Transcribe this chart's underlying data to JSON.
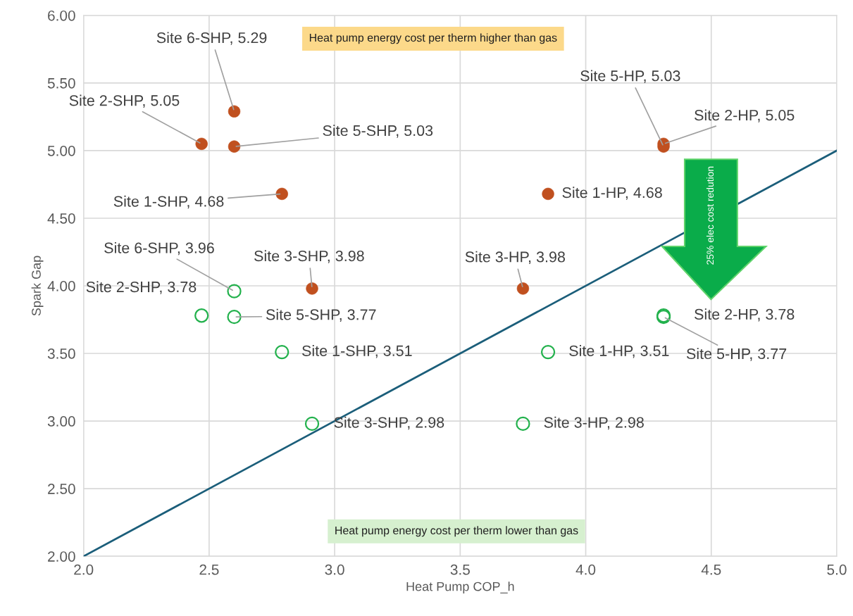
{
  "chart_data": {
    "type": "scatter",
    "xlabel": "Heat Pump COP_h",
    "ylabel": "Spark Gap",
    "xlim": [
      2.0,
      5.0
    ],
    "xticks": [
      {
        "value": 2.0,
        "label": "2.0"
      },
      {
        "value": 2.5,
        "label": "2.5"
      },
      {
        "value": 3.0,
        "label": "3.0"
      },
      {
        "value": 3.5,
        "label": "3.5"
      },
      {
        "value": 4.0,
        "label": "4.0"
      },
      {
        "value": 4.5,
        "label": "4.5"
      },
      {
        "value": 5.0,
        "label": "5.0"
      }
    ],
    "ylim": [
      2.0,
      6.0
    ],
    "yticks": [
      {
        "value": 2.0,
        "label": "2.00"
      },
      {
        "value": 2.5,
        "label": "2.50"
      },
      {
        "value": 3.0,
        "label": "3.00"
      },
      {
        "value": 3.5,
        "label": "3.50"
      },
      {
        "value": 4.0,
        "label": "4.00"
      },
      {
        "value": 4.5,
        "label": "4.50"
      },
      {
        "value": 5.0,
        "label": "5.00"
      },
      {
        "value": 5.5,
        "label": "5.50"
      },
      {
        "value": 6.0,
        "label": "6.00"
      }
    ],
    "grid": true,
    "series": [
      {
        "marker": "circle",
        "color": "#c0501f",
        "x": [
          2.6,
          2.47,
          2.6,
          2.79,
          2.91,
          3.75,
          3.85,
          4.31,
          4.31
        ],
        "values": [
          5.29,
          5.05,
          5.03,
          4.68,
          3.98,
          3.98,
          4.68,
          5.03,
          5.05
        ],
        "value_labels": [
          "Site 6-SHP, 5.29",
          "Site 2-SHP, 5.05",
          "Site 5-SHP, 5.03",
          "Site 1-SHP, 4.68",
          "Site 3-SHP, 3.98",
          "Site 3-HP, 3.98",
          "Site 1-HP, 4.68",
          "Site 5-HP, 5.03",
          "Site 2-HP, 5.05"
        ]
      },
      {
        "marker": "circle",
        "color": "#22b14c",
        "x": [
          2.6,
          2.47,
          2.6,
          2.79,
          2.91,
          3.75,
          3.85,
          4.31,
          4.31
        ],
        "values": [
          3.96,
          3.78,
          3.77,
          3.51,
          2.98,
          2.98,
          3.51,
          3.78,
          3.77
        ],
        "value_labels": [
          "Site 6-SHP, 3.96",
          "Site 2-SHP, 3.78",
          "Site 5-SHP, 3.77",
          "Site 1-SHP, 3.51",
          "Site 3-SHP, 2.98",
          "Site 3-HP, 2.98",
          "Site 1-HP, 3.51",
          "Site 2-HP, 3.78",
          "Site 5-HP, 3.77"
        ]
      },
      {
        "type": "line",
        "marker": "none",
        "color": "#1b5e7a",
        "x": [
          2.0,
          5.0
        ],
        "values": [
          2.0,
          5.0
        ]
      }
    ],
    "annotations": [
      "Heat pump energy cost per therm higher than gas",
      "Heat pump energy cost per therm lower than gas",
      "25% elec cost redution"
    ]
  }
}
